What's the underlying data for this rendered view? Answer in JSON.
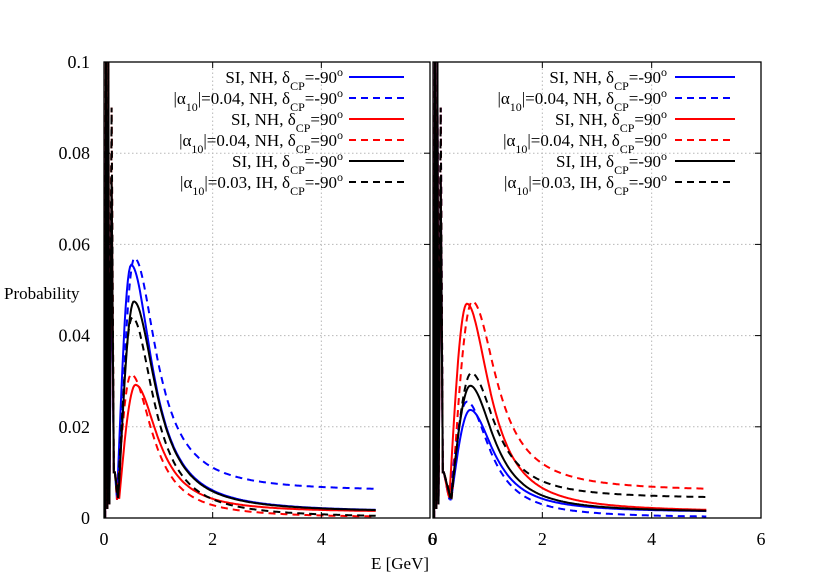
{
  "chart_data": [
    {
      "type": "line",
      "panel": "left",
      "xlabel": "E [GeV]",
      "ylabel": "Probability",
      "xlim": [
        0,
        6
      ],
      "ylim": [
        0,
        0.1
      ],
      "xticks": [
        "0",
        "2",
        "4",
        "6"
      ],
      "yticks": [
        "0",
        "0.02",
        "0.04",
        "0.06",
        "0.08",
        "0.1"
      ],
      "grid": true,
      "legend_position": "top-right",
      "series": [
        {
          "name": "SI, NH, δCP=-90°",
          "label_pre": "SI, NH, δ",
          "label_sub": "CP",
          "label_post": "=-90",
          "label_sup": "o",
          "color": "#0000ff",
          "dash": "solid",
          "peak_x": 0.5,
          "peak_y": 0.0555,
          "tail_y": 0.0012,
          "spike_y": 0.086
        },
        {
          "name": "|α10|=0.04, NH, δCP=-90°",
          "label_pre": "|α",
          "label_sub1": "10",
          "label_mid": "|=0.04, NH, δ",
          "label_sub": "CP",
          "label_post": "=-90",
          "label_sup": "o",
          "color": "#0000ff",
          "dash": "dashed",
          "peak_x": 0.56,
          "peak_y": 0.057,
          "tail_y": 0.0058,
          "spike_y": 0.08
        },
        {
          "name": "SI, NH, δCP=90°",
          "label_pre": "SI, NH, δ",
          "label_sub": "CP",
          "label_post": "=90",
          "label_sup": "o",
          "color": "#ff0000",
          "dash": "solid",
          "peak_x": 0.58,
          "peak_y": 0.0292,
          "tail_y": 0.0012,
          "spike_y": 0.1
        },
        {
          "name": "|α10|=0.04, NH, δCP=90°",
          "label_pre": "|α",
          "label_sub1": "10",
          "label_mid": "|=0.04, NH, δ",
          "label_sub": "CP",
          "label_post": "=90",
          "label_sup": "o",
          "color": "#ff0000",
          "dash": "dashed",
          "peak_x": 0.5,
          "peak_y": 0.0315,
          "tail_y": 0.0,
          "spike_y": 0.1
        },
        {
          "name": "SI, IH, δCP=-90°",
          "label_pre": "SI, IH, δ",
          "label_sub": "CP",
          "label_post": "=-90",
          "label_sup": "o",
          "color": "#000000",
          "dash": "solid",
          "peak_x": 0.55,
          "peak_y": 0.0475,
          "tail_y": 0.0012,
          "spike_y": 0.1
        },
        {
          "name": "|α10|=0.03, IH, δCP=-90°",
          "label_pre": "|α",
          "label_sub1": "10",
          "label_mid": "|=0.03, IH, δ",
          "label_sub": "CP",
          "label_post": "=-90",
          "label_sup": "o",
          "color": "#000000",
          "dash": "dashed",
          "peak_x": 0.52,
          "peak_y": 0.044,
          "tail_y": 0.0,
          "spike_y": 0.1
        }
      ]
    },
    {
      "type": "line",
      "panel": "right",
      "xlabel": "E [GeV]",
      "xlim": [
        0,
        6
      ],
      "ylim": [
        0,
        0.1
      ],
      "xticks": [
        "0",
        "2",
        "4",
        "6"
      ],
      "grid": true,
      "legend_position": "top-right",
      "series": [
        {
          "name": "SI, NH, δCP=-90°",
          "label_pre": "SI, NH, δ",
          "label_sub": "CP",
          "label_post": "=-90",
          "label_sup": "o",
          "color": "#0000ff",
          "dash": "solid",
          "peak_x": 0.68,
          "peak_y": 0.0237,
          "tail_y": 0.0012,
          "spike_y": 0.1
        },
        {
          "name": "|α10|=0.04,  NH, δCP=-90°",
          "label_pre": "|α",
          "label_sub1": "10",
          "label_mid": "|=0.04,  NH, δ",
          "label_sub": "CP",
          "label_post": "=-90",
          "label_sup": "o",
          "color": "#0000ff",
          "dash": "dashed",
          "peak_x": 0.62,
          "peak_y": 0.0255,
          "tail_y": 0.0,
          "spike_y": 0.1
        },
        {
          "name": "SI, NH, δCP=90°",
          "label_pre": "SI, NH, δ",
          "label_sub": "CP",
          "label_post": "=90",
          "label_sup": "o",
          "color": "#ff0000",
          "dash": "solid",
          "peak_x": 0.62,
          "peak_y": 0.047,
          "tail_y": 0.0012,
          "spike_y": 0.1
        },
        {
          "name": "|α10|=0.04, NH, δCP=90°",
          "label_pre": "|α",
          "label_sub1": "10",
          "label_mid": "|=0.04, NH, δ",
          "label_sub": "CP",
          "label_post": "=90",
          "label_sup": "o",
          "color": "#ff0000",
          "dash": "dashed",
          "peak_x": 0.72,
          "peak_y": 0.0475,
          "tail_y": 0.0058,
          "spike_y": 0.1
        },
        {
          "name": "SI, IH, δCP=-90°",
          "label_pre": "SI, IH, δ",
          "label_sub": "CP",
          "label_post": "=-90",
          "label_sup": "o",
          "color": "#000000",
          "dash": "solid",
          "peak_x": 0.68,
          "peak_y": 0.029,
          "tail_y": 0.0012,
          "spike_y": 0.1
        },
        {
          "name": "|α10|=0.03, IH, δCP=-90°",
          "label_pre": "|α",
          "label_sub1": "10",
          "label_mid": "|=0.03, IH, δ",
          "label_sub": "CP",
          "label_post": "=-90",
          "label_sup": "o",
          "color": "#000000",
          "dash": "dashed",
          "peak_x": 0.7,
          "peak_y": 0.0318,
          "tail_y": 0.0042,
          "spike_y": 0.1
        }
      ]
    }
  ]
}
